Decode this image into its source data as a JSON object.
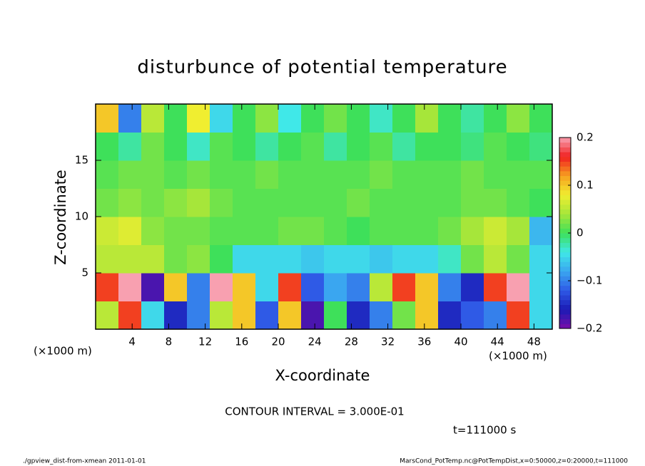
{
  "chart_data": {
    "type": "heatmap",
    "title": "disturbunce of potential temperature",
    "xlabel": "X-coordinate",
    "ylabel": "Z-coordinate",
    "xunit": "(×1000 m)",
    "yunit": "(×1000 m)",
    "contour_note": "CONTOUR INTERVAL = 3.000E-01",
    "time_note": "t=111000 s",
    "footer_left": "./gpview_dist-from-xmean  2011-01-01",
    "footer_right": "MarsCond_PotTemp.nc@PotTempDist,x=0:50000,z=0:20000,t=111000",
    "xlim": [
      0,
      50
    ],
    "ylim": [
      0,
      20
    ],
    "xticks": [
      4,
      8,
      12,
      16,
      20,
      24,
      28,
      32,
      36,
      40,
      44,
      48
    ],
    "yticks": [
      5,
      10,
      15
    ],
    "clim": [
      -0.2,
      0.2
    ],
    "cticks": [
      {
        "value": 0.2,
        "label": "0.2"
      },
      {
        "value": 0.1,
        "label": "0.1"
      },
      0,
      {
        "value": -0.1,
        "label": "−0.1"
      },
      {
        "value": -0.2,
        "label": "−0.2"
      }
    ],
    "colormap": [
      "#7a0fa8",
      "#1a1ab4",
      "#2f5ae6",
      "#3aa6f0",
      "#40e8e8",
      "#3ee05a",
      "#a6e63a",
      "#f0ee30",
      "#f7a020",
      "#f02020",
      "#f8a0b0"
    ],
    "x": [
      1.25,
      3.75,
      6.25,
      8.75,
      11.25,
      13.75,
      16.25,
      18.75,
      21.25,
      23.75,
      26.25,
      28.75,
      31.25,
      33.75,
      36.25,
      38.75,
      41.25,
      43.75,
      46.25,
      48.75
    ],
    "y": [
      1.25,
      3.75,
      6.25,
      8.75,
      11.25,
      13.75,
      16.25,
      18.75
    ],
    "z": [
      [
        0.05,
        0.15,
        -0.05,
        -0.15,
        -0.1,
        0.05,
        0.1,
        -0.12,
        0.1,
        -0.18,
        0.0,
        -0.15,
        -0.1,
        0.02,
        0.1,
        -0.15,
        -0.12,
        -0.1,
        0.15,
        -0.05
      ],
      [
        0.15,
        0.2,
        -0.18,
        0.1,
        -0.1,
        0.2,
        0.1,
        -0.05,
        0.15,
        -0.12,
        -0.08,
        -0.1,
        0.05,
        0.15,
        0.1,
        -0.1,
        -0.15,
        0.15,
        0.2,
        -0.05
      ],
      [
        0.05,
        0.05,
        0.05,
        0.02,
        0.03,
        0.0,
        -0.05,
        -0.05,
        -0.05,
        -0.06,
        -0.05,
        -0.05,
        -0.06,
        -0.05,
        -0.05,
        -0.03,
        0.02,
        0.05,
        0.02,
        -0.05
      ],
      [
        0.06,
        0.07,
        0.03,
        0.02,
        0.02,
        0.01,
        0.01,
        0.01,
        0.02,
        0.02,
        0.01,
        0.0,
        0.01,
        0.01,
        0.01,
        0.02,
        0.04,
        0.06,
        0.04,
        -0.07
      ],
      [
        0.02,
        0.03,
        0.02,
        0.03,
        0.04,
        0.02,
        0.01,
        0.01,
        0.01,
        0.01,
        0.01,
        0.02,
        0.01,
        0.01,
        0.01,
        0.01,
        0.02,
        0.02,
        0.01,
        0.0
      ],
      [
        0.01,
        0.02,
        0.02,
        0.01,
        0.02,
        0.01,
        0.01,
        0.02,
        0.01,
        0.01,
        0.01,
        0.01,
        0.02,
        0.01,
        0.01,
        0.01,
        0.02,
        0.01,
        0.01,
        0.01
      ],
      [
        0.0,
        -0.02,
        0.02,
        0.0,
        -0.03,
        0.01,
        0.0,
        -0.02,
        0.0,
        0.01,
        -0.02,
        0.0,
        0.01,
        -0.02,
        0.0,
        0.0,
        -0.01,
        0.01,
        0.0,
        -0.01
      ],
      [
        0.1,
        -0.1,
        0.05,
        0.0,
        0.08,
        -0.05,
        0.0,
        0.03,
        -0.04,
        0.0,
        0.02,
        0.0,
        -0.03,
        0.0,
        0.04,
        0.0,
        -0.02,
        0.0,
        0.03,
        0.0
      ]
    ]
  }
}
